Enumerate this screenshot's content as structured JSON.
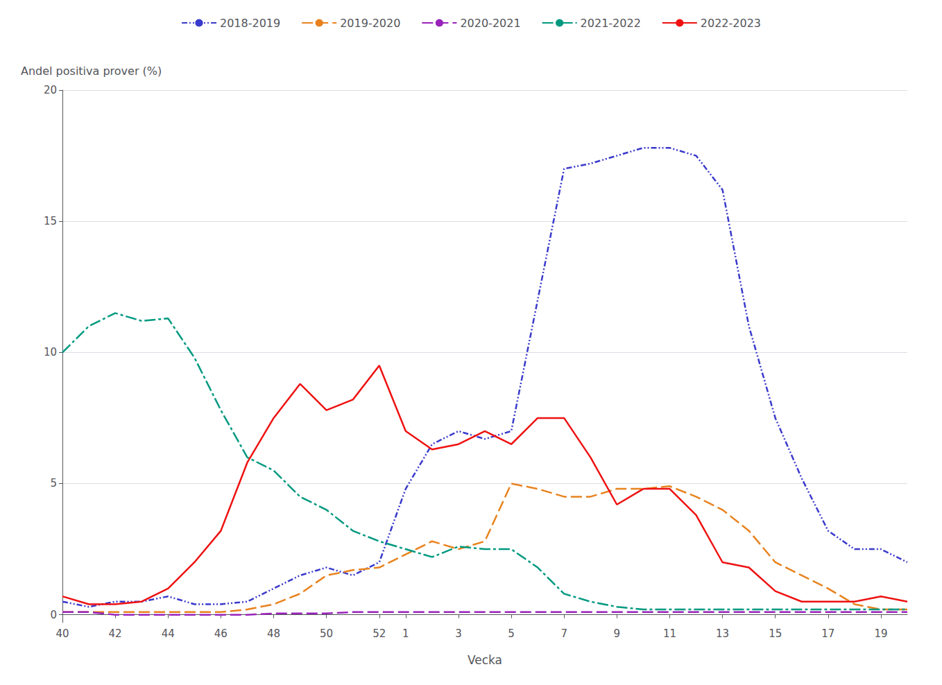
{
  "chart_data": {
    "type": "line",
    "xlabel": "Vecka",
    "ylabel": "Andel positiva prover (%)",
    "categories": [
      "40",
      null,
      "42",
      null,
      "44",
      null,
      "46",
      null,
      "48",
      null,
      "50",
      null,
      "52",
      "1",
      null,
      "3",
      null,
      "5",
      null,
      "7",
      null,
      "9",
      null,
      "11",
      null,
      "13",
      null,
      "15",
      null,
      "17",
      null,
      "19",
      null
    ],
    "ylim": [
      -0.3,
      20
    ],
    "yticks": [
      0,
      5,
      10,
      15,
      20
    ],
    "grid": true,
    "legend": "top",
    "series": [
      {
        "name": "2018-2019",
        "color": "#3a3acc",
        "line_style": "dashdotdot",
        "values": [
          0.5,
          0.3,
          0.5,
          0.5,
          0.7,
          0.4,
          0.4,
          0.5,
          1.0,
          1.5,
          1.8,
          1.5,
          2.0,
          4.8,
          6.5,
          7.0,
          6.7,
          7.0,
          12.0,
          17.0,
          17.2,
          17.5,
          17.8,
          17.8,
          17.5,
          16.2,
          11.0,
          7.5,
          5.2,
          3.2,
          2.5,
          2.5,
          2.0
        ]
      },
      {
        "name": "2019-2020",
        "color": "#e8821e",
        "line_style": "longdash",
        "values": [
          0.1,
          0.1,
          0.1,
          0.1,
          0.1,
          0.1,
          0.1,
          0.2,
          0.4,
          0.8,
          1.5,
          1.7,
          1.8,
          2.3,
          2.8,
          2.5,
          2.8,
          5.0,
          4.8,
          4.5,
          4.5,
          4.8,
          4.8,
          4.9,
          4.5,
          4.0,
          3.2,
          2.0,
          1.5,
          1.0,
          0.4,
          0.2,
          0.2
        ]
      },
      {
        "name": "2020-2021",
        "color": "#9922bb",
        "line_style": "longdash",
        "values": [
          0.1,
          0.1,
          0.0,
          0.0,
          0.0,
          0.0,
          0.0,
          0.0,
          0.05,
          0.05,
          0.05,
          0.1,
          0.1,
          0.1,
          0.1,
          0.1,
          0.1,
          0.1,
          0.1,
          0.1,
          0.1,
          0.1,
          0.1,
          0.1,
          0.1,
          0.1,
          0.1,
          0.1,
          0.1,
          0.1,
          0.1,
          0.1,
          0.1
        ]
      },
      {
        "name": "2021-2022",
        "color": "#009980",
        "line_style": "dashdot",
        "values": [
          10.0,
          11.0,
          11.5,
          11.2,
          11.3,
          9.8,
          7.8,
          6.0,
          5.5,
          4.5,
          4.0,
          3.2,
          2.8,
          2.5,
          2.2,
          2.6,
          2.5,
          2.5,
          1.8,
          0.8,
          0.5,
          0.3,
          0.2,
          0.2,
          0.2,
          0.2,
          0.2,
          0.2,
          0.2,
          0.2,
          0.2,
          0.2,
          0.2
        ]
      },
      {
        "name": "2022-2023",
        "color": "#ee1111",
        "line_style": "solid",
        "values": [
          0.7,
          0.4,
          0.4,
          0.5,
          1.0,
          2.0,
          3.2,
          5.8,
          7.5,
          8.8,
          7.8,
          8.2,
          9.5,
          7.0,
          6.3,
          6.5,
          7.0,
          6.5,
          7.5,
          7.5,
          6.0,
          4.2,
          4.8,
          4.8,
          3.8,
          2.0,
          1.8,
          0.9,
          0.5,
          0.5,
          0.5,
          0.7,
          0.5
        ]
      }
    ]
  }
}
